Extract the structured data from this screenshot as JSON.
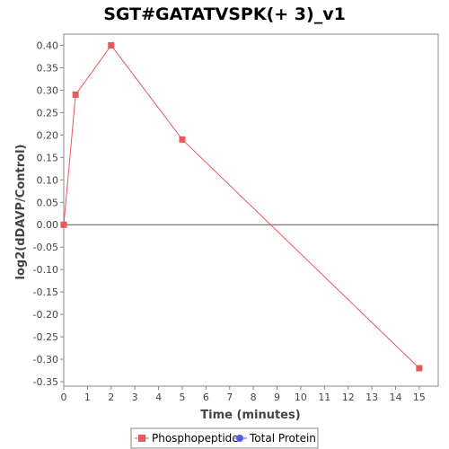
{
  "chart_data": {
    "type": "line",
    "title": "SGT#GATATVSPK(+ 3)_v1",
    "xlabel": "Time (minutes)",
    "ylabel": "log2(dDAVP/Control)",
    "xlim": [
      0,
      15.8
    ],
    "ylim": [
      -0.36,
      0.425
    ],
    "x_ticks": [
      0,
      1,
      2,
      3,
      4,
      5,
      6,
      7,
      8,
      9,
      10,
      11,
      12,
      13,
      14,
      15
    ],
    "y_ticks": [
      "0.40",
      "0.35",
      "0.30",
      "0.25",
      "0.20",
      "0.15",
      "0.10",
      "0.05",
      "0.00",
      "-0.05",
      "-0.10",
      "-0.15",
      "-0.20",
      "-0.25",
      "-0.30",
      "-0.35"
    ],
    "zero_line": true,
    "grid": false,
    "legend_position": "bottom",
    "series": [
      {
        "name": "Phosphopeptide",
        "color": "#e8585c",
        "marker": "square",
        "x": [
          0,
          0.5,
          2,
          5,
          15
        ],
        "y": [
          0.0,
          0.29,
          0.4,
          0.19,
          -0.32
        ]
      },
      {
        "name": "Total Protein",
        "color": "#5a5af0",
        "marker": "circle",
        "x": [],
        "y": []
      }
    ]
  }
}
